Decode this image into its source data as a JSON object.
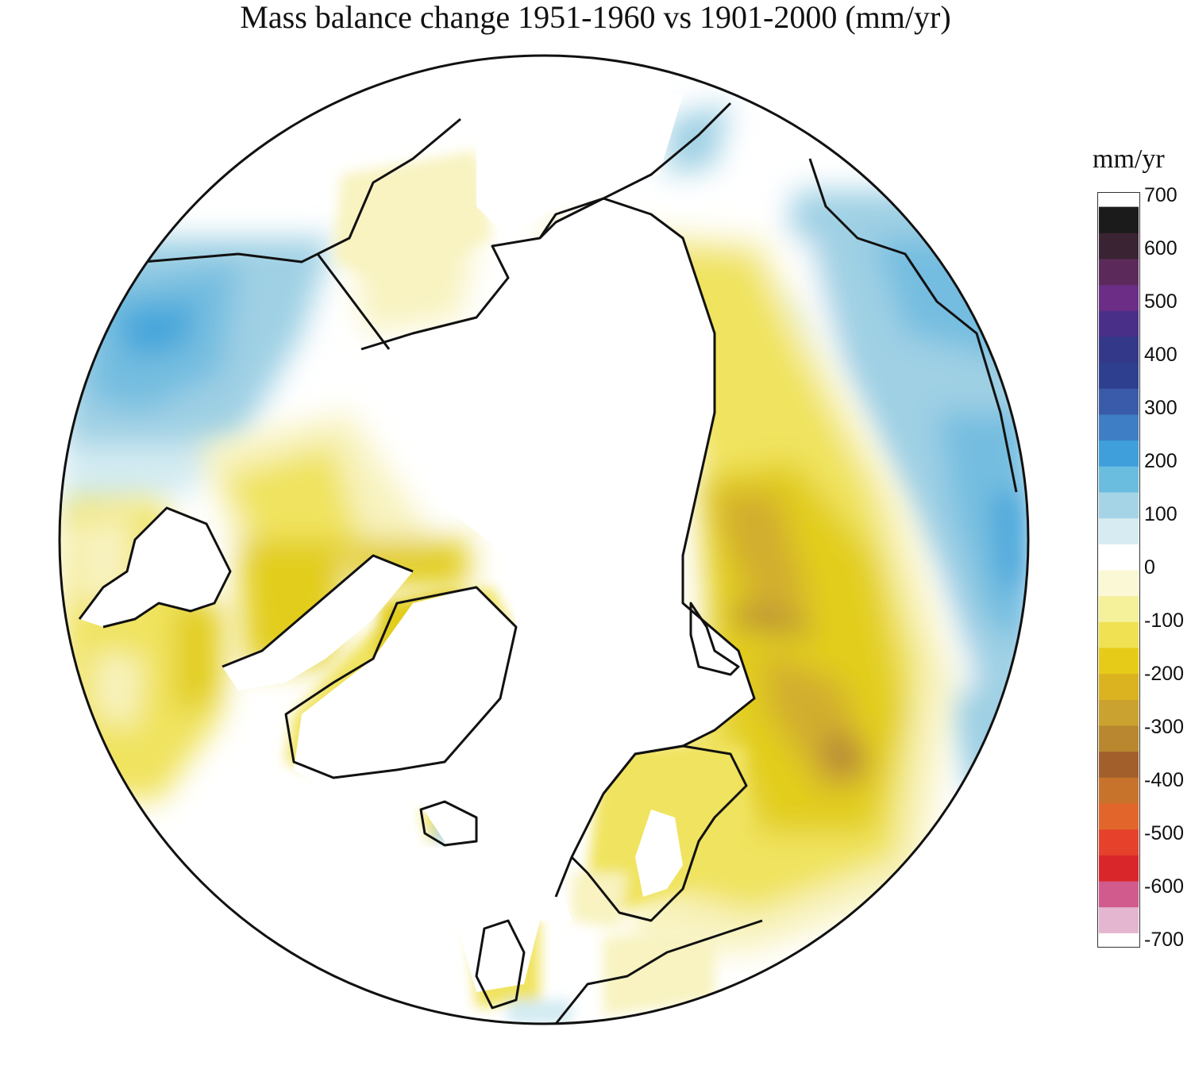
{
  "title": "Mass balance change 1951-1960 vs 1901-2000 (mm/yr)",
  "legend": {
    "unit": "mm/yr",
    "ticks": [
      "700",
      "600",
      "500",
      "400",
      "300",
      "200",
      "100",
      "0",
      "-100",
      "-200",
      "-300",
      "-400",
      "-500",
      "-600",
      "-700"
    ],
    "range": [
      -700,
      700
    ],
    "colors": [
      "#e4b6d0",
      "#d05b8c",
      "#d9262a",
      "#e6422b",
      "#e2662b",
      "#c8732c",
      "#a35f2b",
      "#b8872f",
      "#caa22f",
      "#dbb220",
      "#e6cc18",
      "#efe151",
      "#f5f09a",
      "#fbf8d6",
      "#ffffff",
      "#d6ecf2",
      "#a4d4e6",
      "#6bbde0",
      "#3f9fda",
      "#3d7ec4",
      "#3a5ba9",
      "#2e3f8f",
      "#333888",
      "#4a2f88",
      "#6b2d86",
      "#5c2a5a",
      "#3a2333",
      "#1b1b1b"
    ]
  },
  "map": {
    "projection": "north-polar-stereographic",
    "colors": {
      "neutral": "#ffffff",
      "light_yellow": "#f8f3c0",
      "yellow": "#f0e35e",
      "deep_yellow": "#e2cd1c",
      "ochre": "#d2ae2e",
      "brown": "#b38438",
      "light_blue": "#d3ebf2",
      "blue": "#9fd0e4",
      "mid_blue": "#74bde0",
      "strong_blue": "#45a5da",
      "coast": "#111111"
    }
  }
}
